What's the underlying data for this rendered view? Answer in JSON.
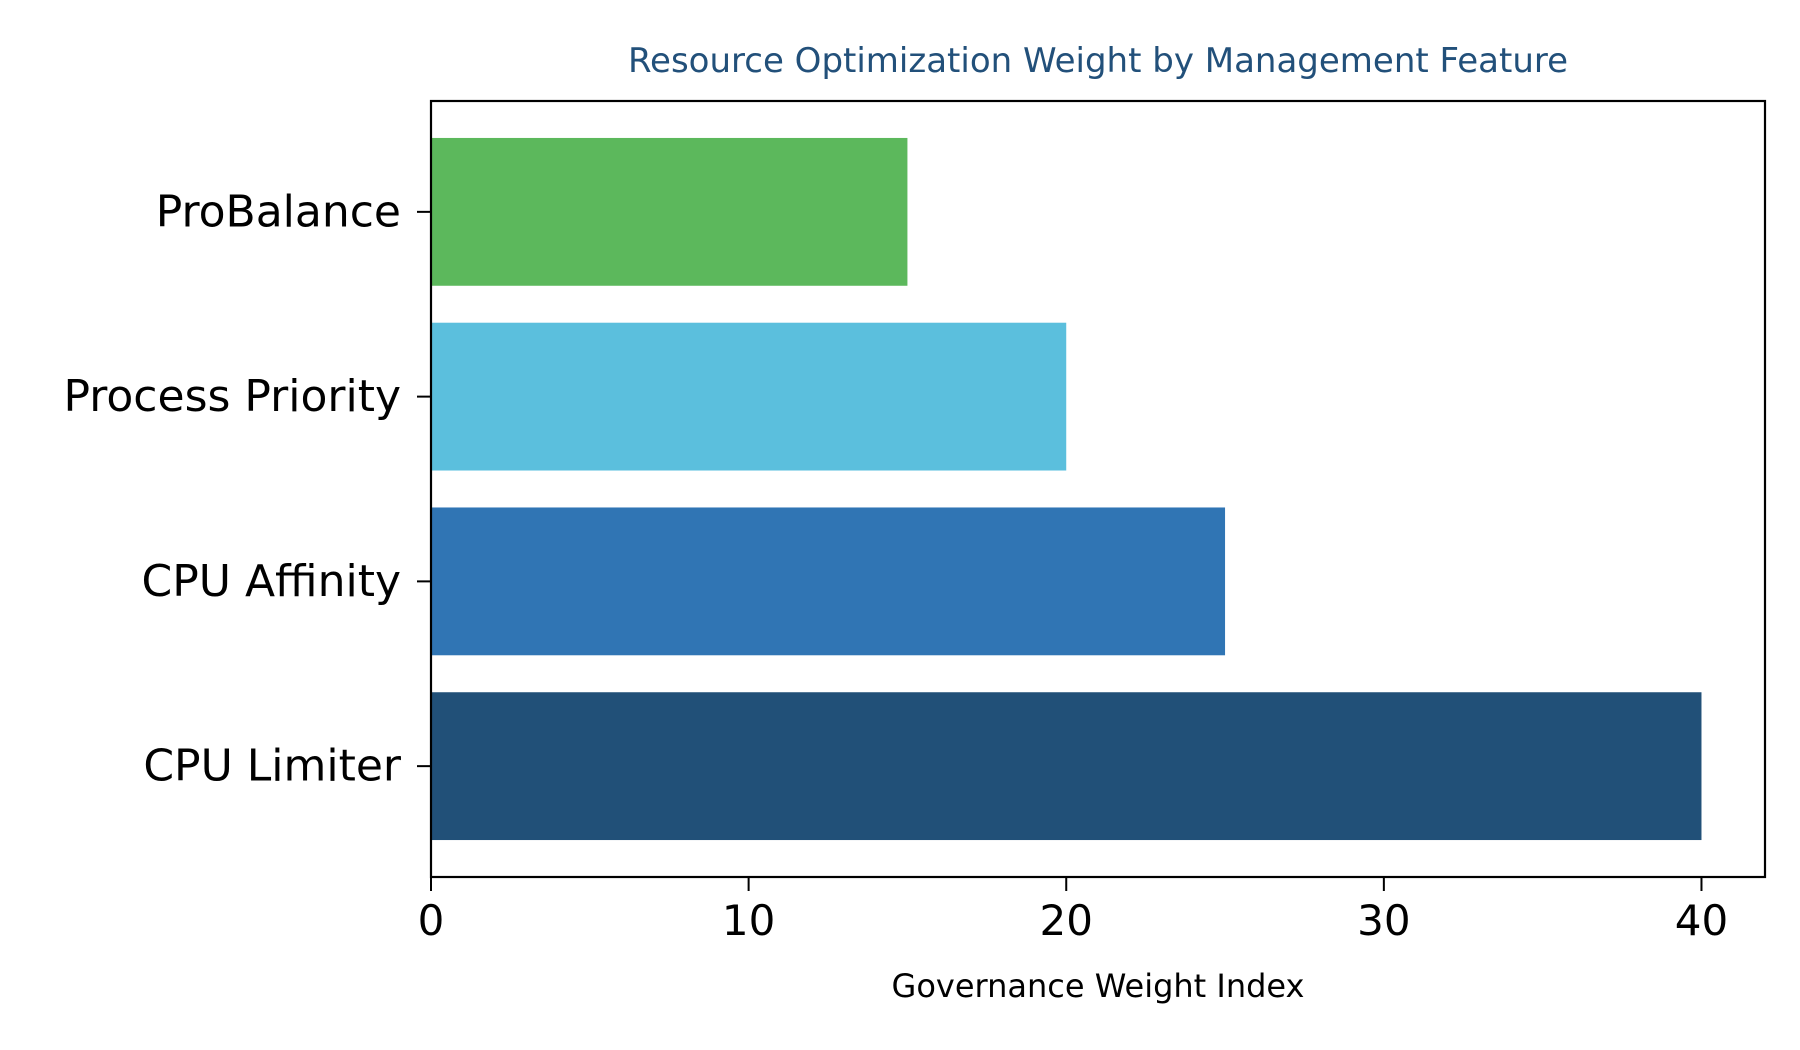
{
  "chart_data": {
    "type": "bar",
    "orientation": "horizontal",
    "title": "Resource Optimization Weight by Management Feature",
    "xlabel": "Governance Weight Index",
    "ylabel": "",
    "categories": [
      "CPU Limiter",
      "CPU Affinity",
      "Process Priority",
      "ProBalance"
    ],
    "values": [
      40,
      25,
      20,
      15
    ],
    "colors": [
      "#215078",
      "#3075b4",
      "#5bbfdd",
      "#5cb85c"
    ],
    "xlim": [
      0,
      42
    ],
    "xticks": [
      0,
      10,
      20,
      30,
      40
    ],
    "xtick_labels": [
      "0",
      "10",
      "20",
      "30",
      "40"
    ],
    "grid": false,
    "title_color": "#22507a"
  }
}
